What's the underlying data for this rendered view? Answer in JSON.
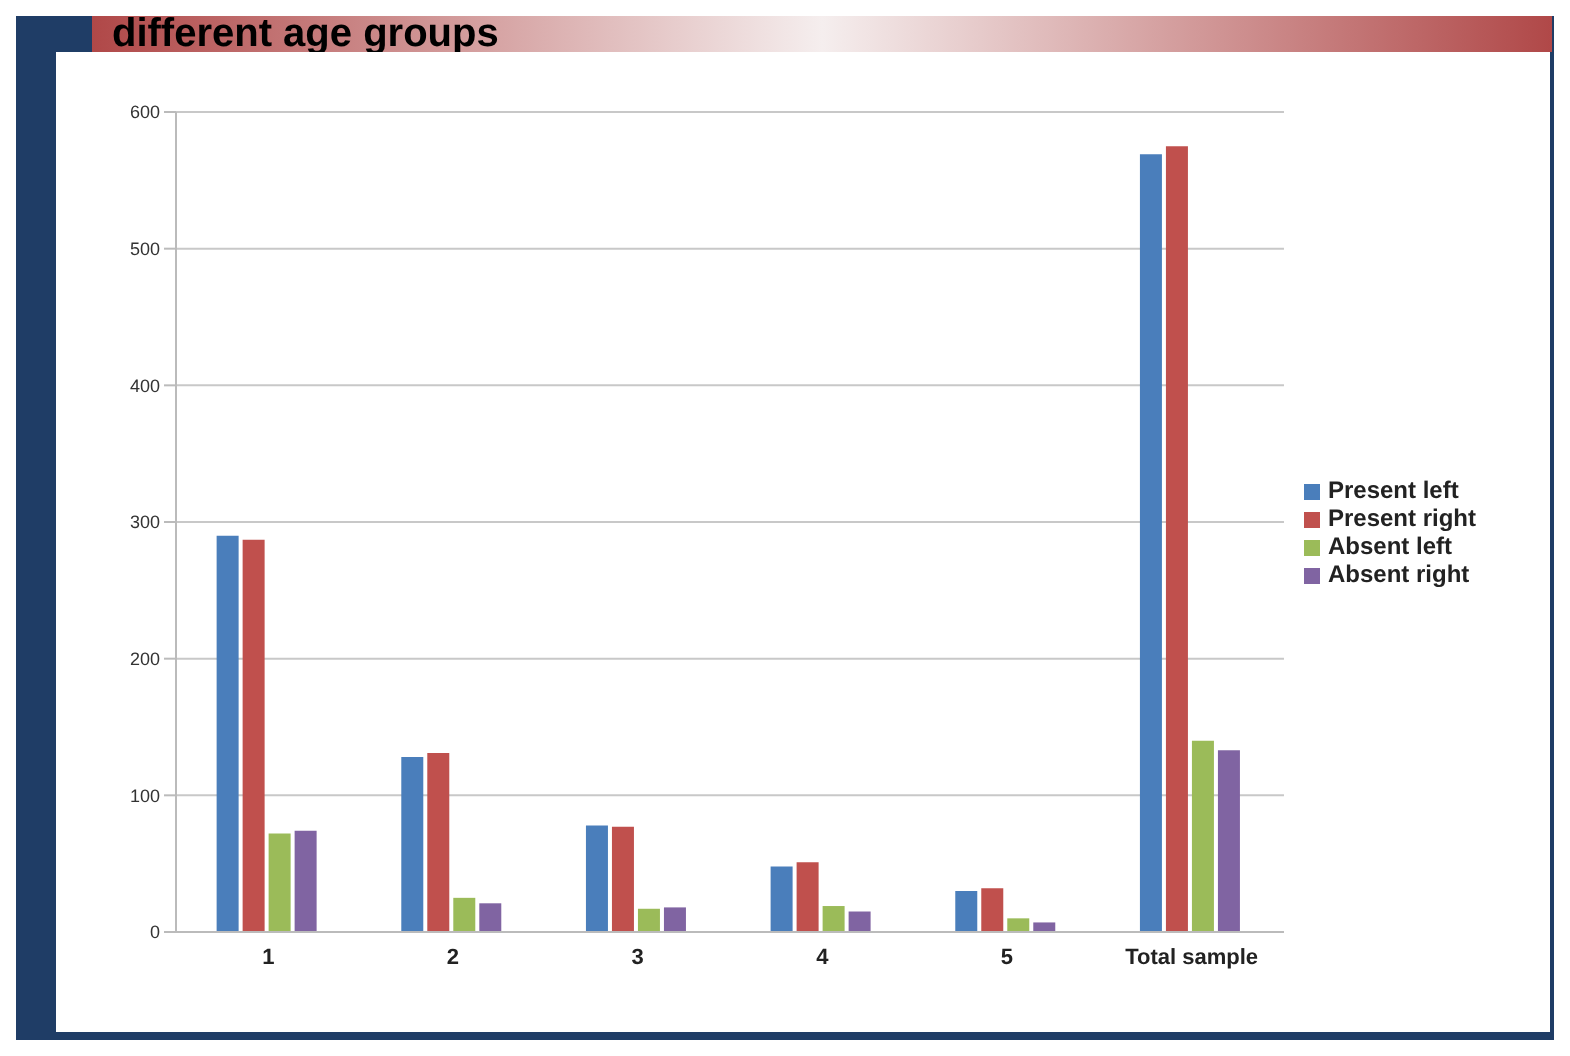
{
  "chart_data": {
    "type": "bar",
    "title": "different age groups",
    "categories": [
      "1",
      "2",
      "3",
      "4",
      "5",
      "Total sample"
    ],
    "series": [
      {
        "name": "Present left",
        "color": "#4a7ebb",
        "values": [
          290,
          128,
          78,
          48,
          30,
          569
        ]
      },
      {
        "name": "Present right",
        "color": "#c0504d",
        "values": [
          287,
          131,
          77,
          51,
          32,
          575
        ]
      },
      {
        "name": "Absent left",
        "color": "#9bbb59",
        "values": [
          72,
          25,
          17,
          19,
          10,
          140
        ]
      },
      {
        "name": "Absent right",
        "color": "#8064a2",
        "values": [
          74,
          21,
          18,
          15,
          7,
          133
        ]
      }
    ],
    "ylim": [
      0,
      600
    ],
    "yticks": [
      0,
      100,
      200,
      300,
      400,
      500,
      600
    ],
    "grid": "y",
    "legend": "right"
  }
}
